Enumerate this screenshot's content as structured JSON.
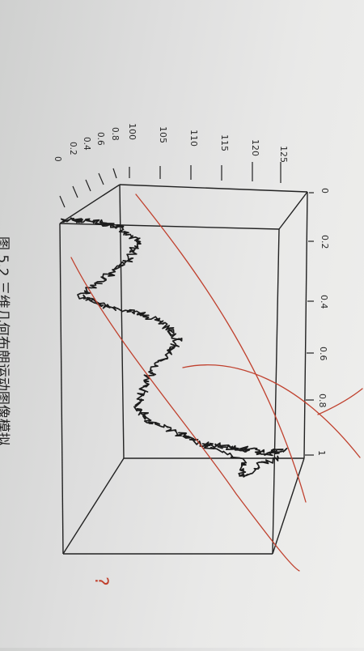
{
  "photo": {
    "description_type": "photo of a printed textbook page (rotated 90 degrees)",
    "colors": {
      "paper": "#e4e4e2",
      "ink": "#1c1c1c",
      "pencil_red": "#c0412e"
    }
  },
  "figure": {
    "z_ticks": [
      "125",
      "120",
      "115",
      "110",
      "105",
      "100"
    ],
    "y_ticks": [
      "0.8",
      "0.6",
      "0.4",
      "0.2",
      "0"
    ],
    "x_ticks": [
      "0",
      "0.2",
      "0.4",
      "0.6",
      "0.8",
      "1"
    ],
    "caption": "图 5.2 三维几何布朗运动图像模拟"
  },
  "annotation": {
    "handwritten_mark": "?"
  }
}
